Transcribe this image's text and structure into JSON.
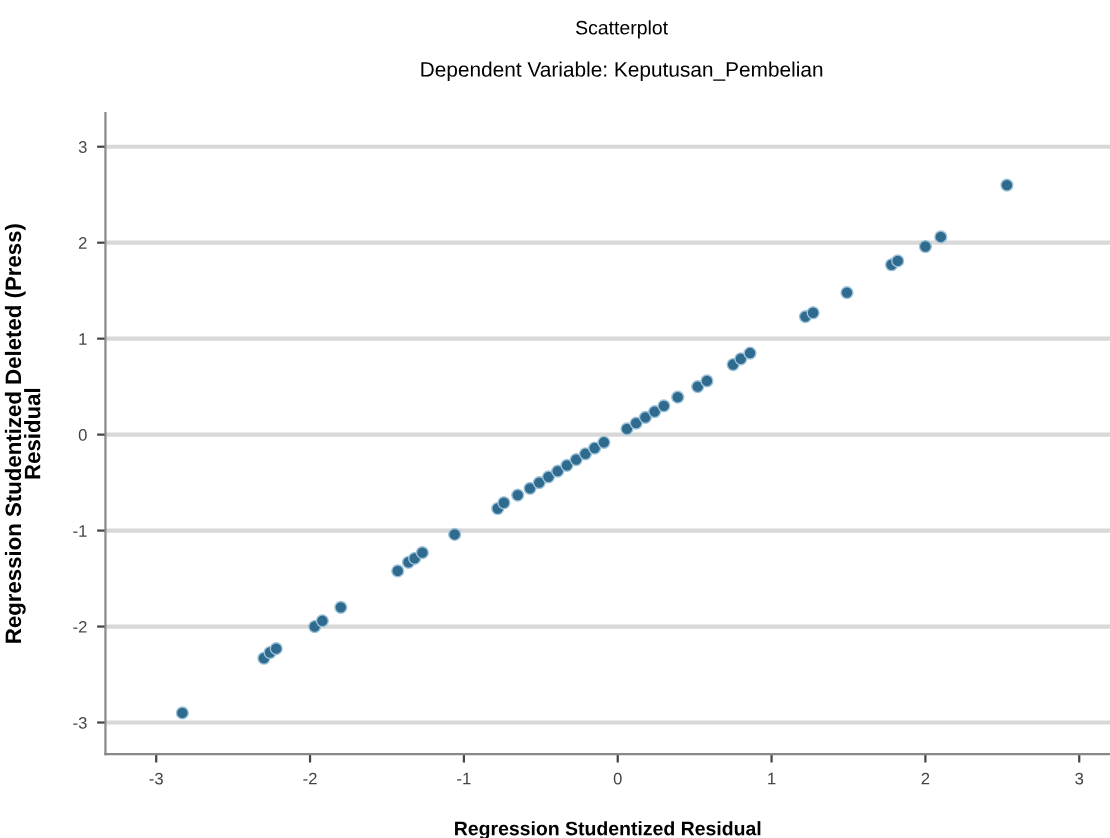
{
  "chart_data": {
    "type": "scatter",
    "title": "Scatterplot",
    "subtitle": "Dependent Variable: Keputusan_Pembelian",
    "xlabel": "Regression Studentized Residual",
    "ylabel": "Regression Studentized Deleted (Press)\nResidual",
    "xlim": [
      -3.33,
      3.2
    ],
    "ylim": [
      -3.33,
      3.35
    ],
    "xticks": [
      -3,
      -2,
      -1,
      0,
      1,
      2,
      3
    ],
    "yticks": [
      -3,
      -2,
      -1,
      0,
      1,
      2,
      3
    ],
    "grid": "y",
    "marker": "circle",
    "series": [
      {
        "color": "#2f6a8f",
        "x": [
          -2.83,
          -2.3,
          -2.26,
          -2.22,
          -1.97,
          -1.92,
          -1.8,
          -1.43,
          -1.36,
          -1.32,
          -1.27,
          -1.06,
          -0.78,
          -0.74,
          -0.65,
          -0.57,
          -0.51,
          -0.45,
          -0.39,
          -0.33,
          -0.27,
          -0.21,
          -0.15,
          -0.09,
          0.06,
          0.12,
          0.18,
          0.24,
          0.3,
          0.39,
          0.52,
          0.58,
          0.75,
          0.8,
          0.86,
          1.22,
          1.27,
          1.49,
          1.78,
          1.82,
          2.0,
          2.1,
          2.53
        ],
        "values": [
          -2.9,
          -2.33,
          -2.27,
          -2.23,
          -2.0,
          -1.94,
          -1.8,
          -1.42,
          -1.33,
          -1.29,
          -1.23,
          -1.04,
          -0.77,
          -0.71,
          -0.63,
          -0.56,
          -0.5,
          -0.44,
          -0.38,
          -0.32,
          -0.26,
          -0.2,
          -0.14,
          -0.08,
          0.06,
          0.12,
          0.18,
          0.24,
          0.3,
          0.39,
          0.5,
          0.56,
          0.73,
          0.79,
          0.85,
          1.23,
          1.27,
          1.48,
          1.77,
          1.81,
          1.96,
          2.06,
          2.6
        ]
      }
    ]
  }
}
